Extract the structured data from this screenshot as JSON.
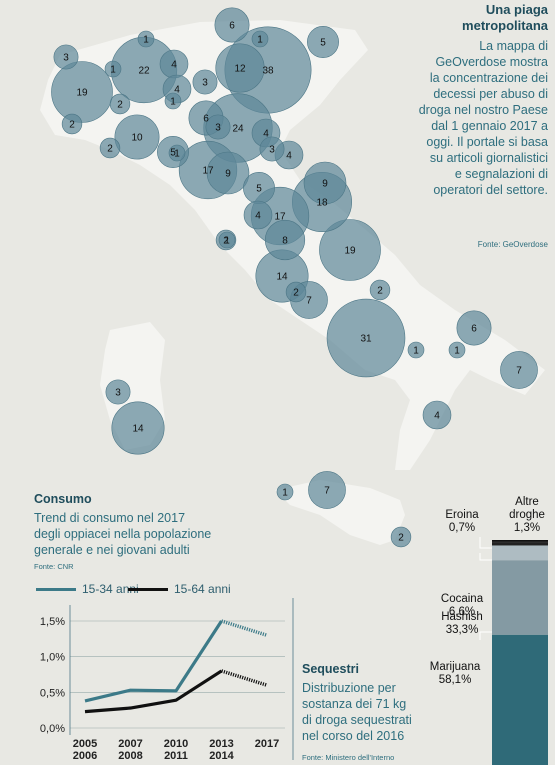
{
  "colors": {
    "map_bg": "#e8e8e3",
    "land": "#f4f4f1",
    "bubble": "#5e8898",
    "bubble_stroke": "#4c7686",
    "teal": "#3c7a88",
    "black": "#111111",
    "bar_top": "#aebcc2",
    "bar_mid": "#849aa3",
    "bar_bottom": "#2f6a78"
  },
  "map": {
    "title_line1": "Una piaga",
    "title_line2": "metropolitana",
    "description": [
      "La mappa di",
      "GeOverdose mostra",
      "la concentrazione dei",
      "decessi per abuso di",
      "droga nel nostro Paese",
      "dal 1 gennaio 2017 a",
      "oggi. Il portale si basa",
      "su articoli giornalistici",
      "e segnalazioni di",
      "operatori del settore."
    ],
    "source": "Fonte: GeOverdose"
  },
  "consumo": {
    "title": "Consumo",
    "subtitle": [
      "Trend di consumo nel 2017",
      "degli oppiacei nella popolazione",
      "generale e nei giovani adulti"
    ],
    "source": "Fonte: CNR"
  },
  "sequestri": {
    "title": "Sequestri",
    "subtitle": [
      "Distribuzione per",
      "sostanza dei 71 kg",
      "di droga sequestrati",
      "nel corso del 2016"
    ],
    "source": "Fonte: Ministero dell'Interno"
  },
  "chart_data": [
    {
      "type": "scatter",
      "title": "Una piaga metropolitana",
      "values": [
        6,
        1,
        5,
        3,
        1,
        22,
        4,
        1,
        12,
        38,
        19,
        4,
        3,
        1,
        2,
        4,
        2,
        10,
        6,
        3,
        24,
        2,
        3,
        5,
        4,
        1,
        17,
        9,
        5,
        9,
        18,
        4,
        17,
        8,
        2,
        19,
        14,
        2,
        7,
        1,
        2,
        6,
        31,
        1,
        1,
        7,
        14,
        4,
        3,
        1,
        7,
        2
      ]
    },
    {
      "type": "line",
      "x": [
        "2005\n2006",
        "2007\n2008",
        "2010\n2011",
        "2013\n2014",
        "2017"
      ],
      "series": [
        {
          "name": "15-34 anni",
          "values": [
            0.38,
            0.53,
            0.52,
            1.5,
            1.3
          ]
        },
        {
          "name": "15-64 anni",
          "values": [
            0.23,
            0.28,
            0.39,
            0.8,
            0.6
          ]
        }
      ],
      "yticks": [
        "1,5%",
        "1,0%",
        "0,5%",
        "0,0%"
      ],
      "ylim": [
        0,
        1.5
      ]
    },
    {
      "type": "bar",
      "categories": [
        "Eroina",
        "Altre droghe",
        "Cocaina",
        "Hashish",
        "Marijuana"
      ],
      "values": [
        0.7,
        1.3,
        6.6,
        33.3,
        58.1
      ],
      "labels": [
        "0,7%",
        "1,3%",
        "6,6%",
        "33,3%",
        "58,1%"
      ]
    }
  ]
}
